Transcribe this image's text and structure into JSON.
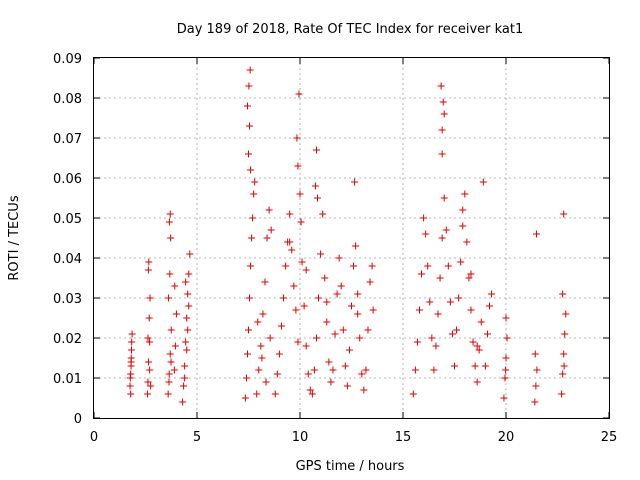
{
  "chart_data": {
    "type": "scatter",
    "title": "Day 189 of 2018, Rate Of TEC Index for receiver kat1",
    "xlabel": "GPS time / hours",
    "ylabel": "ROTI / TECUs",
    "xlim": [
      0,
      25
    ],
    "ylim": [
      0,
      0.09
    ],
    "xticks": [
      0,
      5,
      10,
      15,
      20,
      25
    ],
    "xtick_labels": [
      "0",
      "5",
      "10",
      "15",
      "20",
      "25"
    ],
    "yticks": [
      0,
      0.01,
      0.02,
      0.03,
      0.04,
      0.05,
      0.06,
      0.07,
      0.08,
      0.09
    ],
    "ytick_labels": [
      "0",
      "0.01",
      "0.02",
      "0.03",
      "0.04",
      "0.05",
      "0.06",
      "0.07",
      "0.08",
      "0.09"
    ],
    "grid": true,
    "marker": "+",
    "color": "#e00000",
    "series": [
      {
        "name": "ROTI",
        "x": [
          1.75,
          1.78,
          1.8,
          1.82,
          1.85,
          1.78,
          1.8,
          1.83,
          1.76,
          1.81,
          2.6,
          2.62,
          2.65,
          2.7,
          2.68,
          2.72,
          2.64,
          2.66,
          2.7,
          2.75,
          2.62,
          3.6,
          3.65,
          3.7,
          3.75,
          3.62,
          3.68,
          3.72,
          3.66,
          3.7,
          3.74,
          3.64,
          3.9,
          3.95,
          4.0,
          3.92,
          4.3,
          4.35,
          4.4,
          4.45,
          4.5,
          4.55,
          4.6,
          4.65,
          4.4,
          4.5,
          4.6,
          4.45,
          4.55,
          7.35,
          7.4,
          7.45,
          7.5,
          7.55,
          7.6,
          7.65,
          7.7,
          7.75,
          7.8,
          7.5,
          7.55,
          7.52,
          7.58,
          7.45,
          7.6,
          7.9,
          8.0,
          8.1,
          8.2,
          8.3,
          8.4,
          8.5,
          8.6,
          7.95,
          8.15,
          8.35,
          8.55,
          8.8,
          8.9,
          9.0,
          9.1,
          9.2,
          9.3,
          9.4,
          9.5,
          9.6,
          9.7,
          9.8,
          9.9,
          9.85,
          9.95,
          9.9,
          10.0,
          10.05,
          10.1,
          10.2,
          10.3,
          10.4,
          10.5,
          10.6,
          10.7,
          10.8,
          10.9,
          11.0,
          11.1,
          11.2,
          11.3,
          11.4,
          11.5,
          10.8,
          10.75,
          10.85,
          11.6,
          11.7,
          11.8,
          11.9,
          12.0,
          12.1,
          12.2,
          12.3,
          12.4,
          12.5,
          12.6,
          12.65,
          12.7,
          12.8,
          12.9,
          13.0,
          13.1,
          13.2,
          13.3,
          13.4,
          13.5,
          13.55,
          9.5,
          10.3,
          11.3,
          12.8,
          15.5,
          15.6,
          15.7,
          15.8,
          15.9,
          16.0,
          16.1,
          16.2,
          16.3,
          16.4,
          16.5,
          16.6,
          16.7,
          16.8,
          16.9,
          17.0,
          17.1,
          17.2,
          17.3,
          17.4,
          16.9,
          16.95,
          16.85,
          17.0,
          16.9,
          17.5,
          17.6,
          17.7,
          17.8,
          17.9,
          18.0,
          18.1,
          18.2,
          18.3,
          18.4,
          18.5,
          18.6,
          18.7,
          18.8,
          18.9,
          19.0,
          19.1,
          19.2,
          19.3,
          17.9,
          18.3,
          18.6,
          19.9,
          19.95,
          20.0,
          20.05,
          20.0,
          19.98,
          21.4,
          21.45,
          21.5,
          21.42,
          21.48,
          22.7,
          22.75,
          22.8,
          22.85,
          22.9,
          22.75,
          22.8,
          22.82
        ],
        "y": [
          0.008,
          0.011,
          0.014,
          0.017,
          0.021,
          0.006,
          0.013,
          0.019,
          0.01,
          0.015,
          0.006,
          0.009,
          0.014,
          0.019,
          0.025,
          0.03,
          0.037,
          0.039,
          0.012,
          0.008,
          0.02,
          0.006,
          0.011,
          0.016,
          0.022,
          0.03,
          0.036,
          0.045,
          0.049,
          0.051,
          0.014,
          0.009,
          0.012,
          0.018,
          0.026,
          0.033,
          0.004,
          0.008,
          0.013,
          0.019,
          0.025,
          0.031,
          0.036,
          0.041,
          0.01,
          0.017,
          0.028,
          0.034,
          0.022,
          0.005,
          0.01,
          0.016,
          0.022,
          0.03,
          0.038,
          0.045,
          0.05,
          0.056,
          0.059,
          0.066,
          0.073,
          0.083,
          0.087,
          0.078,
          0.062,
          0.006,
          0.012,
          0.018,
          0.026,
          0.034,
          0.045,
          0.052,
          0.047,
          0.024,
          0.015,
          0.009,
          0.02,
          0.006,
          0.011,
          0.016,
          0.023,
          0.03,
          0.038,
          0.044,
          0.051,
          0.042,
          0.033,
          0.027,
          0.019,
          0.07,
          0.081,
          0.063,
          0.056,
          0.049,
          0.039,
          0.028,
          0.018,
          0.011,
          0.007,
          0.006,
          0.012,
          0.02,
          0.03,
          0.041,
          0.051,
          0.035,
          0.024,
          0.014,
          0.009,
          0.067,
          0.058,
          0.055,
          0.012,
          0.021,
          0.031,
          0.04,
          0.033,
          0.022,
          0.013,
          0.008,
          0.017,
          0.028,
          0.038,
          0.059,
          0.043,
          0.031,
          0.02,
          0.011,
          0.007,
          0.012,
          0.022,
          0.034,
          0.038,
          0.027,
          0.044,
          0.037,
          0.029,
          0.026,
          0.006,
          0.012,
          0.019,
          0.027,
          0.036,
          0.05,
          0.046,
          0.038,
          0.029,
          0.02,
          0.012,
          0.018,
          0.026,
          0.035,
          0.045,
          0.055,
          0.047,
          0.038,
          0.029,
          0.021,
          0.066,
          0.079,
          0.083,
          0.076,
          0.072,
          0.013,
          0.022,
          0.03,
          0.039,
          0.048,
          0.056,
          0.044,
          0.035,
          0.027,
          0.019,
          0.013,
          0.009,
          0.017,
          0.024,
          0.059,
          0.013,
          0.021,
          0.028,
          0.031,
          0.052,
          0.036,
          0.018,
          0.005,
          0.01,
          0.015,
          0.02,
          0.025,
          0.012,
          0.004,
          0.008,
          0.012,
          0.016,
          0.046,
          0.006,
          0.011,
          0.016,
          0.021,
          0.026,
          0.031,
          0.051,
          0.013
        ]
      }
    ]
  }
}
